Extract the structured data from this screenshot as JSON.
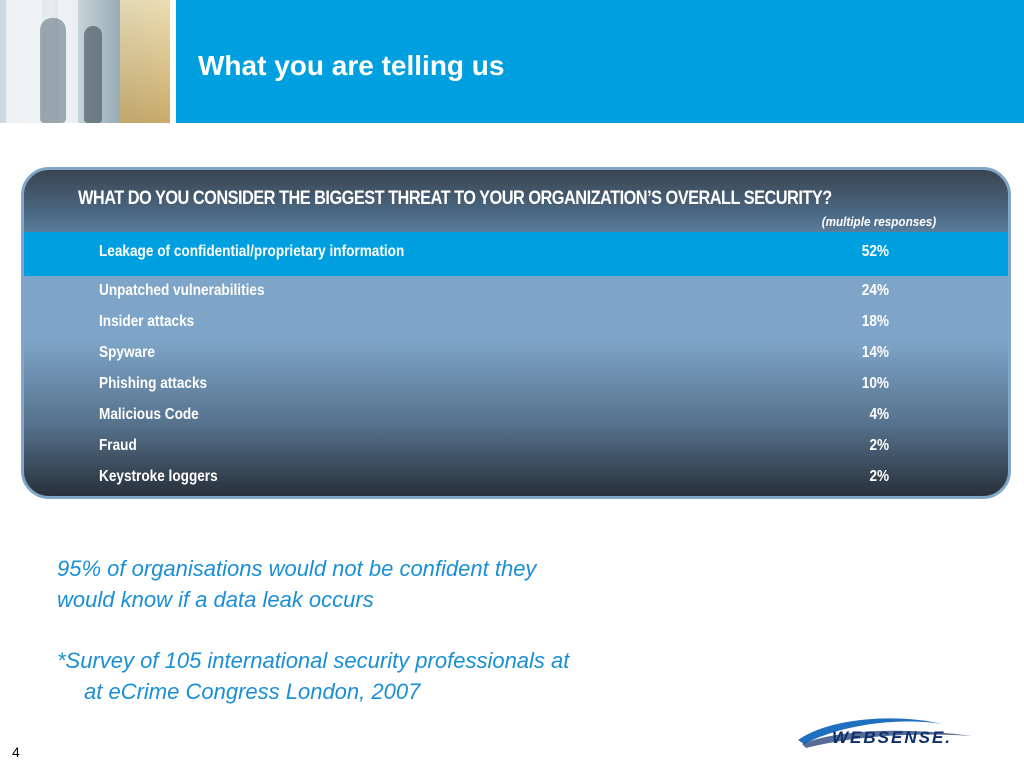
{
  "header": {
    "title": "What you are telling us"
  },
  "survey": {
    "question": "WHAT DO YOU CONSIDER THE BIGGEST THREAT TO YOUR ORGANIZATION’S OVERALL SECURITY?",
    "note": "(multiple responses)",
    "rows": [
      {
        "label": "Leakage of confidential/proprietary information",
        "value": "52%"
      },
      {
        "label": "Unpatched vulnerabilities",
        "value": "24%"
      },
      {
        "label": "Insider attacks",
        "value": "18%"
      },
      {
        "label": "Spyware",
        "value": "14%"
      },
      {
        "label": "Phishing attacks",
        "value": "10%"
      },
      {
        "label": "Malicious Code",
        "value": "4%"
      },
      {
        "label": "Fraud",
        "value": "2%"
      },
      {
        "label": "Keystroke loggers",
        "value": "2%"
      }
    ]
  },
  "notes": {
    "finding_line1": "95% of organisations would not be confident they",
    "finding_line2": "would know if a data leak occurs",
    "footnote_line1": "*Survey of 105 international security professionals at",
    "footnote_line2": "at eCrime Congress London, 2007"
  },
  "footer": {
    "page_number": "4",
    "logo_text": "WEBSENSE."
  },
  "colors": {
    "header_bar": "#00a0e0",
    "highlight_row": "#00a0e0",
    "note_text": "#1a8fd6",
    "logo_text": "#0d2f6b"
  }
}
